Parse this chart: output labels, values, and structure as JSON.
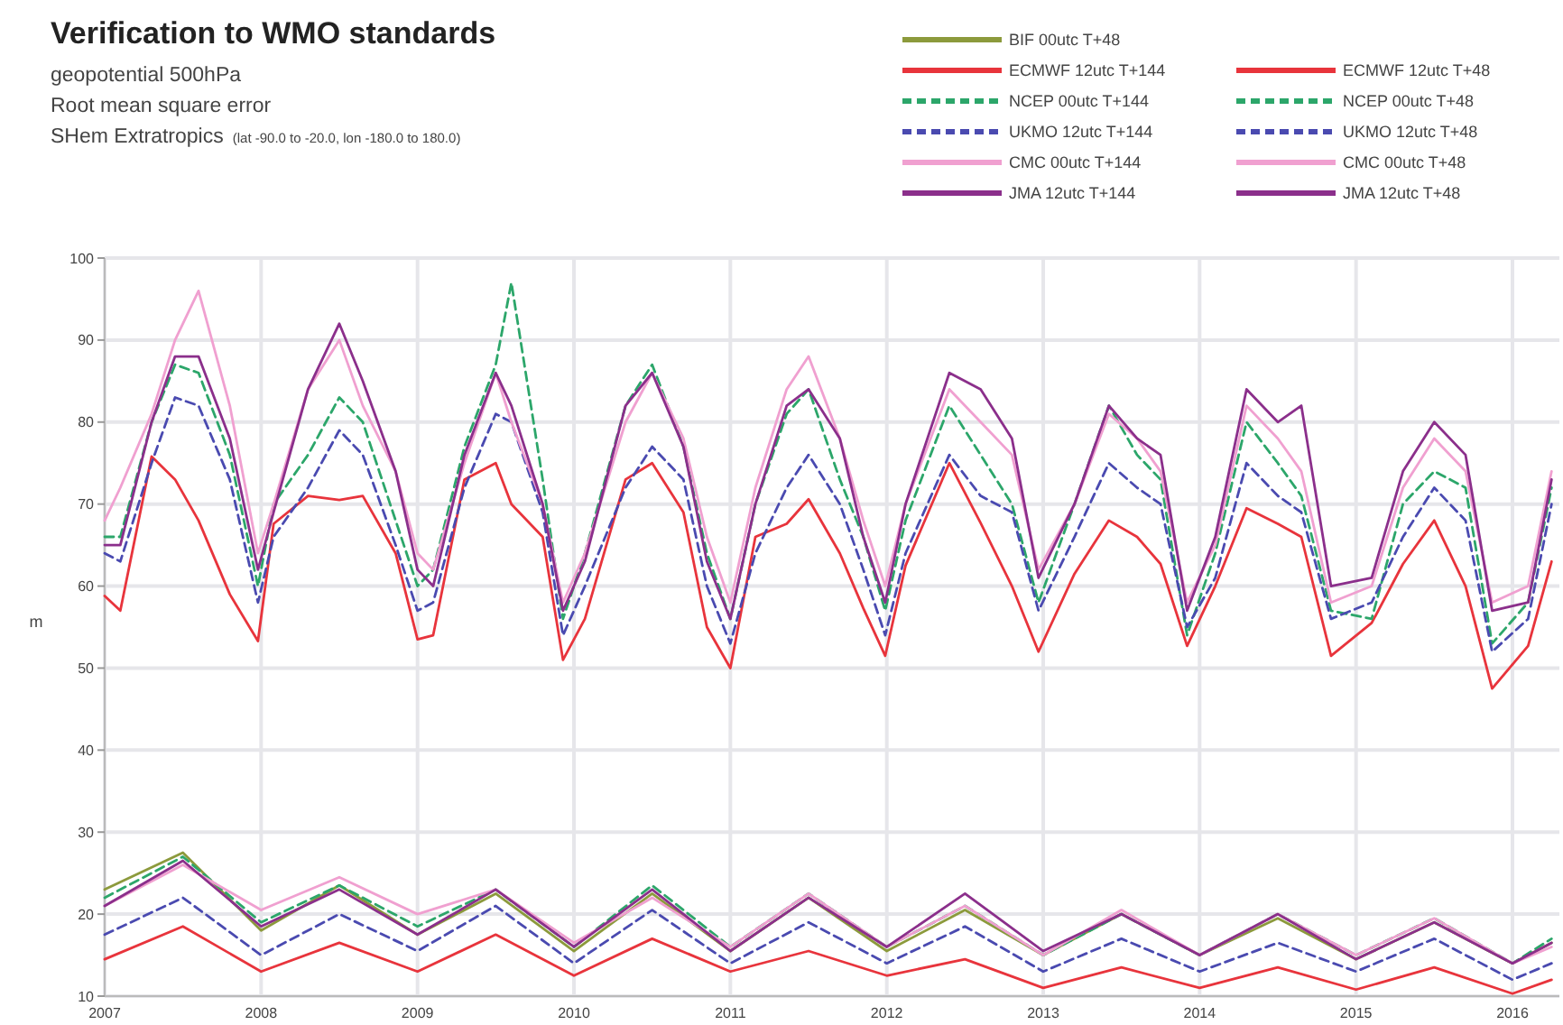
{
  "chart_data": {
    "type": "line",
    "title": "Verification to  WMO standards",
    "subtitle": "geopotential 500hPa\nRoot mean square error\nSHem Extratropics",
    "annotations": [
      "(lat -90.0 to -20.0, lon -180.0 to 180.0)"
    ],
    "ylabel": "m",
    "xlim": [
      2007,
      2016.3
    ],
    "xticks": [
      2007,
      2008,
      2009,
      2010,
      2011,
      2012,
      2013,
      2014,
      2015,
      2016
    ],
    "ylim": [
      10,
      100
    ],
    "yticks": [
      10,
      20,
      30,
      40,
      50,
      60,
      70,
      80,
      90,
      100
    ],
    "grid": true,
    "legend": "top right",
    "marker": "none",
    "line_style": "solid",
    "series": [
      {
        "name": "BIF 00utc T+48",
        "color": "#8c9a3c",
        "x": [
          2007,
          2007.5,
          2008,
          2008.5,
          2009,
          2009.5,
          2010,
          2010.5,
          2011,
          2011.5,
          2012,
          2012.5,
          2013,
          2013.5,
          2014,
          2014.5,
          2015,
          2015.5,
          2016,
          2016.25
        ],
        "values": [
          23,
          27.5,
          18,
          23.5,
          17.5,
          22.5,
          15.5,
          22.5,
          15.5,
          22,
          15.5,
          20.5,
          15,
          20,
          15,
          19.5,
          14.5,
          19,
          14,
          16.5
        ]
      },
      {
        "name": "ECMWF 12utc T+144",
        "color": "#e8343c",
        "x": [
          2007,
          2007.1,
          2007.3,
          2007.45,
          2007.6,
          2007.8,
          2007.98,
          2008.08,
          2008.3,
          2008.5,
          2008.65,
          2008.86,
          2009,
          2009.1,
          2009.3,
          2009.5,
          2009.6,
          2009.8,
          2009.93,
          2010.07,
          2010.33,
          2010.5,
          2010.7,
          2010.85,
          2011,
          2011.16,
          2011.36,
          2011.5,
          2011.7,
          2011.85,
          2011.99,
          2012.12,
          2012.4,
          2012.6,
          2012.8,
          2012.97,
          2013.2,
          2013.42,
          2013.6,
          2013.75,
          2013.92,
          2014.1,
          2014.3,
          2014.5,
          2014.65,
          2014.84,
          2015.1,
          2015.3,
          2015.5,
          2015.7,
          2015.87,
          2016.1,
          2016.25
        ],
        "values": [
          58.8,
          57,
          75.8,
          73,
          68,
          59,
          53.3,
          67.6,
          71,
          70.5,
          71,
          64,
          53.5,
          54,
          73,
          75,
          70,
          66,
          51,
          56,
          73,
          75,
          69,
          55,
          50,
          66,
          67.6,
          70.6,
          64,
          57.3,
          51.5,
          62.5,
          75,
          67.7,
          60,
          52,
          61.5,
          68,
          66,
          62.7,
          52.7,
          60,
          69.5,
          67.6,
          66,
          51.5,
          55.5,
          62.7,
          68,
          60,
          47.5,
          52.7,
          63
        ]
      },
      {
        "name": "ECMWF 12utc T+48",
        "color": "#e8343c",
        "x": [
          2007,
          2007.5,
          2008,
          2008.5,
          2009,
          2009.5,
          2010,
          2010.5,
          2011,
          2011.5,
          2012,
          2012.5,
          2013,
          2013.5,
          2014,
          2014.5,
          2015,
          2015.5,
          2016,
          2016.25
        ],
        "values": [
          14.5,
          18.5,
          13,
          16.5,
          13,
          17.5,
          12.5,
          17,
          13,
          15.5,
          12.5,
          14.5,
          11,
          13.5,
          11,
          13.5,
          10.8,
          13.5,
          10.3,
          12
        ]
      },
      {
        "name": "NCEP 00utc T+144",
        "color": "#2ca66a",
        "line_style": "dashed",
        "x": [
          2007,
          2007.1,
          2007.3,
          2007.45,
          2007.6,
          2007.8,
          2007.98,
          2008.08,
          2008.3,
          2008.5,
          2008.65,
          2008.86,
          2009,
          2009.1,
          2009.3,
          2009.5,
          2009.6,
          2009.8,
          2009.93,
          2010.07,
          2010.33,
          2010.5,
          2010.7,
          2010.85,
          2011,
          2011.16,
          2011.36,
          2011.5,
          2011.7,
          2011.85,
          2011.99,
          2012.12,
          2012.4,
          2012.6,
          2012.8,
          2012.97,
          2013.2,
          2013.42,
          2013.6,
          2013.75,
          2013.92,
          2014.1,
          2014.3,
          2014.5,
          2014.65,
          2014.84,
          2015.1,
          2015.3,
          2015.5,
          2015.7,
          2015.87,
          2016.1,
          2016.25
        ],
        "values": [
          66,
          66,
          80,
          87,
          86,
          76,
          60,
          70,
          76,
          83,
          80,
          68,
          60,
          62,
          77,
          87,
          97,
          73,
          56,
          64,
          82,
          87,
          77,
          64,
          56,
          70,
          81,
          84,
          73,
          66,
          57,
          68,
          82,
          76,
          70,
          58,
          70,
          82,
          76,
          73,
          54,
          64,
          80,
          75,
          71,
          57,
          56,
          70,
          74,
          72,
          53,
          58,
          72
        ]
      },
      {
        "name": "NCEP 00utc T+48",
        "color": "#2ca66a",
        "line_style": "dashed",
        "x": [
          2007,
          2007.5,
          2008,
          2008.5,
          2009,
          2009.5,
          2010,
          2010.5,
          2011,
          2011.5,
          2012,
          2012.5,
          2013,
          2013.5,
          2014,
          2014.5,
          2015,
          2015.5,
          2016,
          2016.25
        ],
        "values": [
          22,
          27,
          19,
          23.5,
          18.5,
          23,
          16,
          23.5,
          16,
          22.5,
          16,
          21,
          15,
          20,
          15,
          20,
          15,
          19.5,
          14,
          17
        ]
      },
      {
        "name": "UKMO 12utc T+144",
        "color": "#4a4ab0",
        "line_style": "dashed",
        "x": [
          2007,
          2007.1,
          2007.3,
          2007.45,
          2007.6,
          2007.8,
          2007.98,
          2008.08,
          2008.3,
          2008.5,
          2008.65,
          2008.86,
          2009,
          2009.1,
          2009.3,
          2009.5,
          2009.6,
          2009.8,
          2009.93,
          2010.07,
          2010.33,
          2010.5,
          2010.7,
          2010.85,
          2011,
          2011.16,
          2011.36,
          2011.5,
          2011.7,
          2011.85,
          2011.99,
          2012.12,
          2012.4,
          2012.6,
          2012.8,
          2012.97,
          2013.2,
          2013.42,
          2013.6,
          2013.75,
          2013.92,
          2014.1,
          2014.3,
          2014.5,
          2014.65,
          2014.84,
          2015.1,
          2015.3,
          2015.5,
          2015.7,
          2015.87,
          2016.1,
          2016.25
        ],
        "values": [
          64,
          63,
          75,
          83,
          82,
          73,
          58,
          66,
          72,
          79,
          76,
          65,
          57,
          58,
          72,
          81,
          80,
          69,
          54,
          60,
          72,
          77,
          73,
          60,
          53,
          64,
          72,
          76,
          70,
          62,
          54,
          64,
          76,
          71,
          69,
          57,
          66,
          75,
          72,
          70,
          55,
          61,
          75,
          71,
          69,
          56,
          58,
          66,
          72,
          68,
          52,
          56,
          70
        ]
      },
      {
        "name": "UKMO 12utc T+48",
        "color": "#4a4ab0",
        "line_style": "dashed",
        "x": [
          2007,
          2007.5,
          2008,
          2008.5,
          2009,
          2009.5,
          2010,
          2010.5,
          2011,
          2011.5,
          2012,
          2012.5,
          2013,
          2013.5,
          2014,
          2014.5,
          2015,
          2015.5,
          2016,
          2016.25
        ],
        "values": [
          17.5,
          22,
          15,
          20,
          15.5,
          21,
          14,
          20.5,
          14,
          19,
          14,
          18.5,
          13,
          17,
          13,
          16.5,
          13,
          17,
          12,
          14
        ]
      },
      {
        "name": "CMC 00utc T+144",
        "color": "#f0a0d0",
        "x": [
          2007,
          2007.1,
          2007.3,
          2007.45,
          2007.6,
          2007.8,
          2007.98,
          2008.08,
          2008.3,
          2008.5,
          2008.65,
          2008.86,
          2009,
          2009.1,
          2009.3,
          2009.5,
          2009.6,
          2009.8,
          2009.93,
          2010.07,
          2010.33,
          2010.5,
          2010.7,
          2010.85,
          2011,
          2011.16,
          2011.36,
          2011.5,
          2011.7,
          2011.85,
          2011.99,
          2012.12,
          2012.4,
          2012.6,
          2012.8,
          2012.97,
          2013.2,
          2013.42,
          2013.6,
          2013.75,
          2013.92,
          2014.1,
          2014.3,
          2014.5,
          2014.65,
          2014.84,
          2015.1,
          2015.3,
          2015.5,
          2015.7,
          2015.87,
          2016.1,
          2016.25
        ],
        "values": [
          68,
          72,
          81,
          90,
          96,
          82,
          64,
          70,
          84,
          90,
          82,
          74,
          64,
          62,
          75,
          86,
          80,
          70,
          58,
          64,
          80,
          86,
          78,
          66,
          58,
          72,
          84,
          88,
          78,
          68,
          60,
          70,
          84,
          80,
          76,
          62,
          70,
          81,
          78,
          74,
          58,
          65,
          82,
          78,
          74,
          58,
          60,
          72,
          78,
          74,
          58,
          60,
          74
        ]
      },
      {
        "name": "CMC 00utc T+48",
        "color": "#f0a0d0",
        "x": [
          2007,
          2007.5,
          2008,
          2008.5,
          2009,
          2009.5,
          2010,
          2010.5,
          2011,
          2011.5,
          2012,
          2012.5,
          2013,
          2013.5,
          2014,
          2014.5,
          2015,
          2015.5,
          2016,
          2016.25
        ],
        "values": [
          21,
          26,
          20.5,
          24.5,
          20,
          23,
          16.5,
          22,
          16,
          22.5,
          16,
          21,
          15,
          20.5,
          15,
          20,
          15,
          19.5,
          14,
          16
        ]
      },
      {
        "name": "JMA 12utc T+144",
        "color": "#8b2f8b",
        "x": [
          2007,
          2007.1,
          2007.3,
          2007.45,
          2007.6,
          2007.8,
          2007.98,
          2008.08,
          2008.3,
          2008.5,
          2008.65,
          2008.86,
          2009,
          2009.1,
          2009.3,
          2009.5,
          2009.6,
          2009.8,
          2009.93,
          2010.07,
          2010.33,
          2010.5,
          2010.7,
          2010.85,
          2011,
          2011.16,
          2011.36,
          2011.5,
          2011.7,
          2011.85,
          2011.99,
          2012.12,
          2012.4,
          2012.6,
          2012.8,
          2012.97,
          2013.2,
          2013.42,
          2013.6,
          2013.75,
          2013.92,
          2014.1,
          2014.3,
          2014.5,
          2014.65,
          2014.84,
          2015.1,
          2015.3,
          2015.5,
          2015.7,
          2015.87,
          2016.1,
          2016.25
        ],
        "values": [
          65,
          65,
          80,
          88,
          88,
          78,
          62,
          69,
          84,
          92,
          85,
          74,
          62,
          60,
          76,
          86,
          82,
          70,
          57,
          63,
          82,
          86,
          77,
          63,
          56,
          70,
          82,
          84,
          78,
          66,
          58,
          70,
          86,
          84,
          78,
          61,
          70,
          82,
          78,
          76,
          57,
          66,
          84,
          80,
          82,
          60,
          61,
          74,
          80,
          76,
          57,
          58,
          73
        ]
      },
      {
        "name": "JMA 12utc T+48",
        "color": "#8b2f8b",
        "x": [
          2007,
          2007.5,
          2008,
          2008.5,
          2009,
          2009.5,
          2010,
          2010.5,
          2011,
          2011.5,
          2012,
          2012.5,
          2013,
          2013.5,
          2014,
          2014.5,
          2015,
          2015.5,
          2016,
          2016.25
        ],
        "values": [
          21,
          26.5,
          18.5,
          23,
          17.5,
          23,
          16,
          23,
          15.5,
          22,
          16,
          22.5,
          15.5,
          20,
          15,
          20,
          14.5,
          19,
          14,
          16.5
        ]
      }
    ]
  }
}
